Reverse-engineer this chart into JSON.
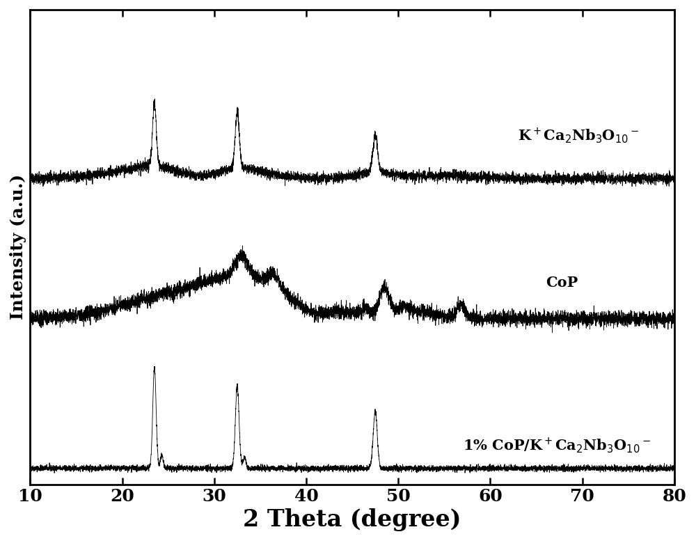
{
  "title": "",
  "xlabel": "2 Theta (degree)",
  "ylabel": "Intensity (a.u.)",
  "xlim": [
    10,
    80
  ],
  "xticks": [
    10,
    20,
    30,
    40,
    50,
    60,
    70,
    80
  ],
  "background_color": "#ffffff",
  "line_color": "#000000",
  "label1": "K$^+$Ca$_2$Nb$_3$O$_{10}$$^-$",
  "label2": "CoP",
  "label3": "1% CoP/K$^+$Ca$_2$Nb$_3$O$_{10}$$^-$",
  "offsets": [
    5.5,
    2.8,
    0.0
  ],
  "xlabel_fontsize": 24,
  "ylabel_fontsize": 18,
  "tick_fontsize": 18,
  "label_fontsize": 15
}
